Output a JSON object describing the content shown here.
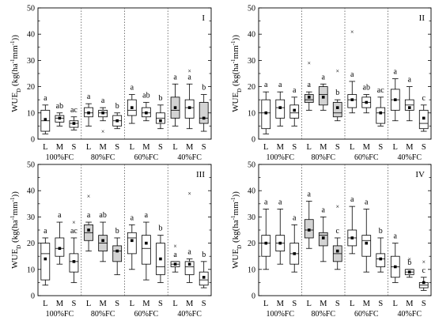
{
  "chart_data": [
    {
      "type": "box",
      "panel": "I",
      "ylabel": "WUE_D (kg(ha^-1mm^-1))",
      "ylim": [
        0,
        50
      ],
      "yticks": [
        0,
        10,
        20,
        30,
        40,
        50
      ],
      "group_labels": [
        "100%FC",
        "80%FC",
        "60%FC",
        "40%FC"
      ],
      "categories": [
        "L",
        "M",
        "S"
      ],
      "boxes": [
        {
          "group": "100%FC",
          "cat": "L",
          "min": 2,
          "q1": 3,
          "median": 7,
          "q3": 11,
          "max": 13,
          "mean": 7.5,
          "fill": "#ffffff",
          "label": "a"
        },
        {
          "group": "100%FC",
          "cat": "M",
          "min": 5,
          "q1": 6.5,
          "median": 8,
          "q3": 9,
          "max": 10,
          "mean": 8,
          "fill": "#ffffff",
          "label": "ab"
        },
        {
          "group": "100%FC",
          "cat": "S",
          "min": 3.5,
          "q1": 4.5,
          "median": 6,
          "q3": 7,
          "max": 8.5,
          "mean": 6,
          "fill": "#ffffff",
          "label": "ac"
        },
        {
          "group": "80%FC",
          "cat": "L",
          "min": 5,
          "q1": 8.5,
          "median": 10,
          "q3": 12,
          "max": 13.5,
          "mean": 10,
          "fill": "#ffffff",
          "label": "a"
        },
        {
          "group": "80%FC",
          "cat": "M",
          "min": 7,
          "q1": 8.5,
          "median": 10,
          "q3": 11,
          "max": 12,
          "mean": 10,
          "outliers": [
            3
          ],
          "fill": "#ffffff",
          "label": "a"
        },
        {
          "group": "80%FC",
          "cat": "S",
          "min": 4,
          "q1": 5,
          "median": 7,
          "q3": 9,
          "max": 10,
          "mean": 7,
          "fill": "#ffffff",
          "label": "b"
        },
        {
          "group": "60%FC",
          "cat": "L",
          "min": 6,
          "q1": 9,
          "median": 11,
          "q3": 15,
          "max": 17,
          "mean": 12,
          "fill": "#ffffff",
          "label": "a"
        },
        {
          "group": "60%FC",
          "cat": "M",
          "min": 7,
          "q1": 8.5,
          "median": 10,
          "q3": 12,
          "max": 14,
          "mean": 10,
          "fill": "#ffffff",
          "label": "ab"
        },
        {
          "group": "60%FC",
          "cat": "S",
          "min": 4,
          "q1": 6,
          "median": 8,
          "q3": 10,
          "max": 13,
          "mean": 7,
          "fill": "#ffffff",
          "label": "b"
        },
        {
          "group": "40%FC",
          "cat": "L",
          "min": 5,
          "q1": 8,
          "median": 11,
          "q3": 16,
          "max": 21,
          "mean": 12,
          "fill": "#d3d3d3",
          "label": "a"
        },
        {
          "group": "40%FC",
          "cat": "M",
          "min": 4,
          "q1": 8,
          "median": 12,
          "q3": 15,
          "max": 21,
          "mean": 12,
          "outliers": [
            26
          ],
          "fill": "#ffffff",
          "label": "a"
        },
        {
          "group": "40%FC",
          "cat": "S",
          "min": 3,
          "q1": 6,
          "median": 8,
          "q3": 14,
          "max": 17,
          "mean": 8,
          "fill": "#d3d3d3",
          "label": "b"
        }
      ]
    },
    {
      "type": "box",
      "panel": "II",
      "ylabel": "WUE_D (kg(ha^-1mm^-1))",
      "ylim": [
        0,
        50
      ],
      "yticks": [
        0,
        10,
        20,
        30,
        40,
        50
      ],
      "group_labels": [
        "100%FC",
        "80%FC",
        "60%FC",
        "40%FC"
      ],
      "categories": [
        "L",
        "M",
        "S"
      ],
      "boxes": [
        {
          "group": "100%FC",
          "cat": "L",
          "min": 2,
          "q1": 4,
          "median": 10,
          "q3": 15,
          "max": 18,
          "mean": 10,
          "fill": "#ffffff",
          "label": "a"
        },
        {
          "group": "100%FC",
          "cat": "M",
          "min": 5,
          "q1": 8,
          "median": 12,
          "q3": 15,
          "max": 18,
          "mean": 12,
          "fill": "#ffffff",
          "label": "a"
        },
        {
          "group": "100%FC",
          "cat": "S",
          "min": 5,
          "q1": 8,
          "median": 10,
          "q3": 13,
          "max": 16,
          "mean": 11,
          "fill": "#ffffff",
          "label": "a"
        },
        {
          "group": "80%FC",
          "cat": "L",
          "min": 11,
          "q1": 14,
          "median": 15,
          "q3": 17,
          "max": 18,
          "mean": 16,
          "outliers": [
            29
          ],
          "fill": "#d3d3d3",
          "label": "a"
        },
        {
          "group": "80%FC",
          "cat": "M",
          "min": 11,
          "q1": 13,
          "median": 17,
          "q3": 20,
          "max": 21,
          "mean": 16,
          "fill": "#d3d3d3",
          "label": "a"
        },
        {
          "group": "80%FC",
          "cat": "S",
          "min": 7,
          "q1": 8.5,
          "median": 10,
          "q3": 14,
          "max": 15,
          "mean": 12,
          "outliers": [
            26
          ],
          "fill": "#d3d3d3",
          "label": "b"
        },
        {
          "group": "60%FC",
          "cat": "L",
          "min": 10,
          "q1": 12,
          "median": 15,
          "q3": 17,
          "max": 22,
          "mean": 15,
          "outliers": [
            41
          ],
          "fill": "#ffffff",
          "label": "a"
        },
        {
          "group": "60%FC",
          "cat": "M",
          "min": 10,
          "q1": 12,
          "median": 14,
          "q3": 16,
          "max": 17,
          "mean": 14,
          "fill": "#ffffff",
          "label": "ab"
        },
        {
          "group": "60%FC",
          "cat": "S",
          "min": 5,
          "q1": 6,
          "median": 10,
          "q3": 12,
          "max": 16,
          "mean": 10,
          "fill": "#ffffff",
          "label": "ac"
        },
        {
          "group": "40%FC",
          "cat": "L",
          "min": 7,
          "q1": 11,
          "median": 15,
          "q3": 19,
          "max": 23,
          "mean": 15,
          "fill": "#ffffff",
          "label": "a"
        },
        {
          "group": "40%FC",
          "cat": "M",
          "min": 7,
          "q1": 11,
          "median": 13,
          "q3": 15,
          "max": 20,
          "mean": 12,
          "fill": "#ffffff",
          "label": "a"
        },
        {
          "group": "40%FC",
          "cat": "S",
          "min": 3,
          "q1": 4,
          "median": 6,
          "q3": 11,
          "max": 13,
          "mean": 8,
          "fill": "#ffffff",
          "label": "c"
        }
      ]
    },
    {
      "type": "box",
      "panel": "III",
      "ylabel": "WUE_D (kg(ha^-1mm^-1))",
      "ylim": [
        0,
        50
      ],
      "yticks": [
        0,
        10,
        20,
        30,
        40,
        50
      ],
      "group_labels": [
        "100%FC",
        "80%FC",
        "60%FC",
        "40%FC"
      ],
      "categories": [
        "L",
        "M",
        "S"
      ],
      "boxes": [
        {
          "group": "100%FC",
          "cat": "L",
          "min": 4,
          "q1": 6,
          "median": 16,
          "q3": 20,
          "max": 22,
          "mean": 14,
          "fill": "#ffffff",
          "label": "a"
        },
        {
          "group": "100%FC",
          "cat": "M",
          "min": 12,
          "q1": 15,
          "median": 18,
          "q3": 22,
          "max": 28,
          "mean": 18,
          "fill": "#ffffff",
          "label": "a"
        },
        {
          "group": "100%FC",
          "cat": "S",
          "min": 5,
          "q1": 9,
          "median": 13,
          "q3": 16,
          "max": 22,
          "mean": 13,
          "outliers": [
            28
          ],
          "fill": "#ffffff",
          "label": "ac"
        },
        {
          "group": "80%FC",
          "cat": "L",
          "min": 17,
          "q1": 21,
          "median": 24,
          "q3": 27,
          "max": 28,
          "mean": 25,
          "outliers": [
            38
          ],
          "fill": "#d3d3d3",
          "label": "a"
        },
        {
          "group": "80%FC",
          "cat": "M",
          "min": 13,
          "q1": 17,
          "median": 20,
          "q3": 23,
          "max": 28,
          "mean": 21,
          "fill": "#d3d3d3",
          "label": "ab"
        },
        {
          "group": "80%FC",
          "cat": "S",
          "min": 8,
          "q1": 13,
          "median": 17,
          "q3": 19,
          "max": 22,
          "mean": 17,
          "fill": "#d3d3d3",
          "label": "b"
        },
        {
          "group": "60%FC",
          "cat": "L",
          "min": 10,
          "q1": 16,
          "median": 22,
          "q3": 24,
          "max": 27,
          "mean": 21,
          "fill": "#ffffff",
          "label": "a"
        },
        {
          "group": "60%FC",
          "cat": "M",
          "min": 6,
          "q1": 12,
          "median": 18,
          "q3": 23,
          "max": 28,
          "mean": 20,
          "fill": "#ffffff",
          "label": "a"
        },
        {
          "group": "60%FC",
          "cat": "S",
          "min": 5,
          "q1": 8,
          "median": 11,
          "q3": 20,
          "max": 23,
          "mean": 14,
          "fill": "#ffffff",
          "label": "b"
        },
        {
          "group": "40%FC",
          "cat": "L",
          "min": 9,
          "q1": 11,
          "median": 12,
          "q3": 13,
          "max": 13,
          "mean": 12,
          "outliers": [
            19
          ],
          "fill": "#ffffff",
          "label": "a"
        },
        {
          "group": "40%FC",
          "cat": "M",
          "min": 5,
          "q1": 8,
          "median": 11,
          "q3": 13,
          "max": 14,
          "mean": 12,
          "outliers": [
            39
          ],
          "fill": "#ffffff",
          "label": "a"
        },
        {
          "group": "40%FC",
          "cat": "S",
          "min": 3,
          "q1": 4,
          "median": 6,
          "q3": 9,
          "max": 13,
          "mean": 7,
          "fill": "#ffffff",
          "label": "b"
        }
      ]
    },
    {
      "type": "box",
      "panel": "IV",
      "ylabel": "WUE_D (kg(ha^-1mm^-1))",
      "ylim": [
        0,
        50
      ],
      "yticks": [
        0,
        10,
        20,
        30,
        40,
        50
      ],
      "group_labels": [
        "100%FC",
        "80%FC",
        "60%FC",
        "40%FC"
      ],
      "categories": [
        "L",
        "M",
        "S"
      ],
      "boxes": [
        {
          "group": "100%FC",
          "cat": "L",
          "min": 10,
          "q1": 15,
          "median": 20,
          "q3": 23,
          "max": 33,
          "mean": 20,
          "fill": "#ffffff",
          "label": "a"
        },
        {
          "group": "100%FC",
          "cat": "M",
          "min": 12,
          "q1": 17,
          "median": 20,
          "q3": 23,
          "max": 33,
          "mean": 20,
          "fill": "#ffffff",
          "label": "a"
        },
        {
          "group": "100%FC",
          "cat": "S",
          "min": 9,
          "q1": 12,
          "median": 16,
          "q3": 20,
          "max": 27,
          "mean": 16,
          "fill": "#ffffff",
          "label": "a"
        },
        {
          "group": "80%FC",
          "cat": "L",
          "min": 18,
          "q1": 22,
          "median": 25,
          "q3": 29,
          "max": 36,
          "mean": 25,
          "fill": "#d3d3d3",
          "label": "a"
        },
        {
          "group": "80%FC",
          "cat": "M",
          "min": 13,
          "q1": 19,
          "median": 23,
          "q3": 24,
          "max": 30,
          "mean": 22,
          "fill": "#d3d3d3",
          "label": "a"
        },
        {
          "group": "80%FC",
          "cat": "S",
          "min": 10,
          "q1": 13,
          "median": 16,
          "q3": 19,
          "max": 22,
          "mean": 17,
          "outliers": [
            34
          ],
          "fill": "#d3d3d3",
          "label": "c"
        },
        {
          "group": "60%FC",
          "cat": "L",
          "min": 16,
          "q1": 19,
          "median": 22,
          "q3": 25,
          "max": 34,
          "mean": 22,
          "fill": "#ffffff",
          "label": "a"
        },
        {
          "group": "60%FC",
          "cat": "M",
          "min": 9,
          "q1": 15,
          "median": 21,
          "q3": 23,
          "max": 33,
          "mean": 20,
          "fill": "#ffffff",
          "label": "a"
        },
        {
          "group": "60%FC",
          "cat": "S",
          "min": 9,
          "q1": 11,
          "median": 14,
          "q3": 16,
          "max": 22,
          "mean": 14,
          "fill": "#ffffff",
          "label": "b"
        },
        {
          "group": "40%FC",
          "cat": "L",
          "min": 5,
          "q1": 7,
          "median": 11,
          "q3": 15,
          "max": 20,
          "mean": 11,
          "fill": "#ffffff",
          "label": "a"
        },
        {
          "group": "40%FC",
          "cat": "M",
          "min": 7,
          "q1": 8,
          "median": 9,
          "q3": 10,
          "max": 10,
          "mean": 9,
          "outliers": [
            14
          ],
          "fill": "#ffffff",
          "label": "b"
        },
        {
          "group": "40%FC",
          "cat": "S",
          "min": 2,
          "q1": 3,
          "median": 4,
          "q3": 5,
          "max": 7,
          "mean": 5,
          "outliers": [
            13
          ],
          "fill": "#ffffff",
          "label": "c"
        }
      ]
    }
  ]
}
